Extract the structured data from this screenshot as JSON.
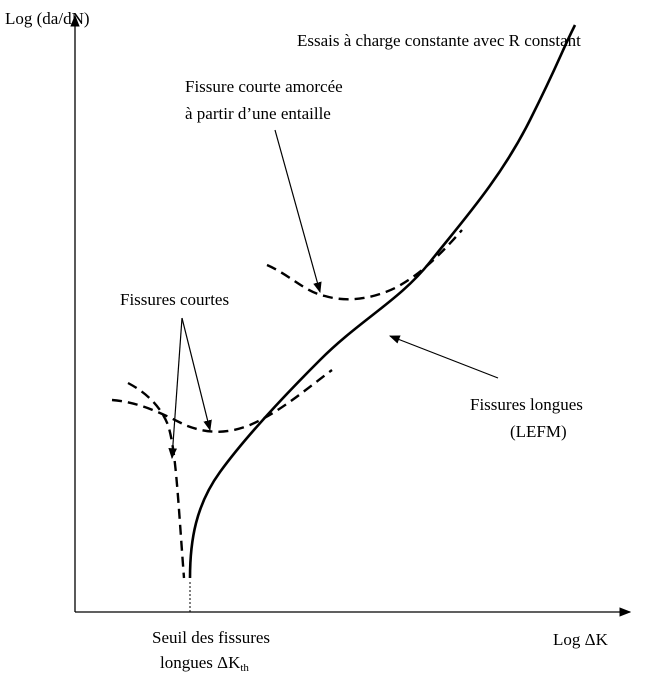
{
  "y_axis_label": "Log (da/dN)",
  "x_axis_label": "Log ΔK",
  "curve_labels": {
    "constant_load": "Essais à charge constante avec R constant",
    "notch_line1": "Fissure courte amorcée",
    "notch_line2": "à partir d’une entaille",
    "short_cracks": "Fissures courtes",
    "long_cracks_line1": "Fissures longues",
    "long_cracks_line2": "(LEFM)"
  },
  "threshold": {
    "line1": "Seuil des fissures",
    "line2": "longues ΔK",
    "subscript": "th"
  }
}
